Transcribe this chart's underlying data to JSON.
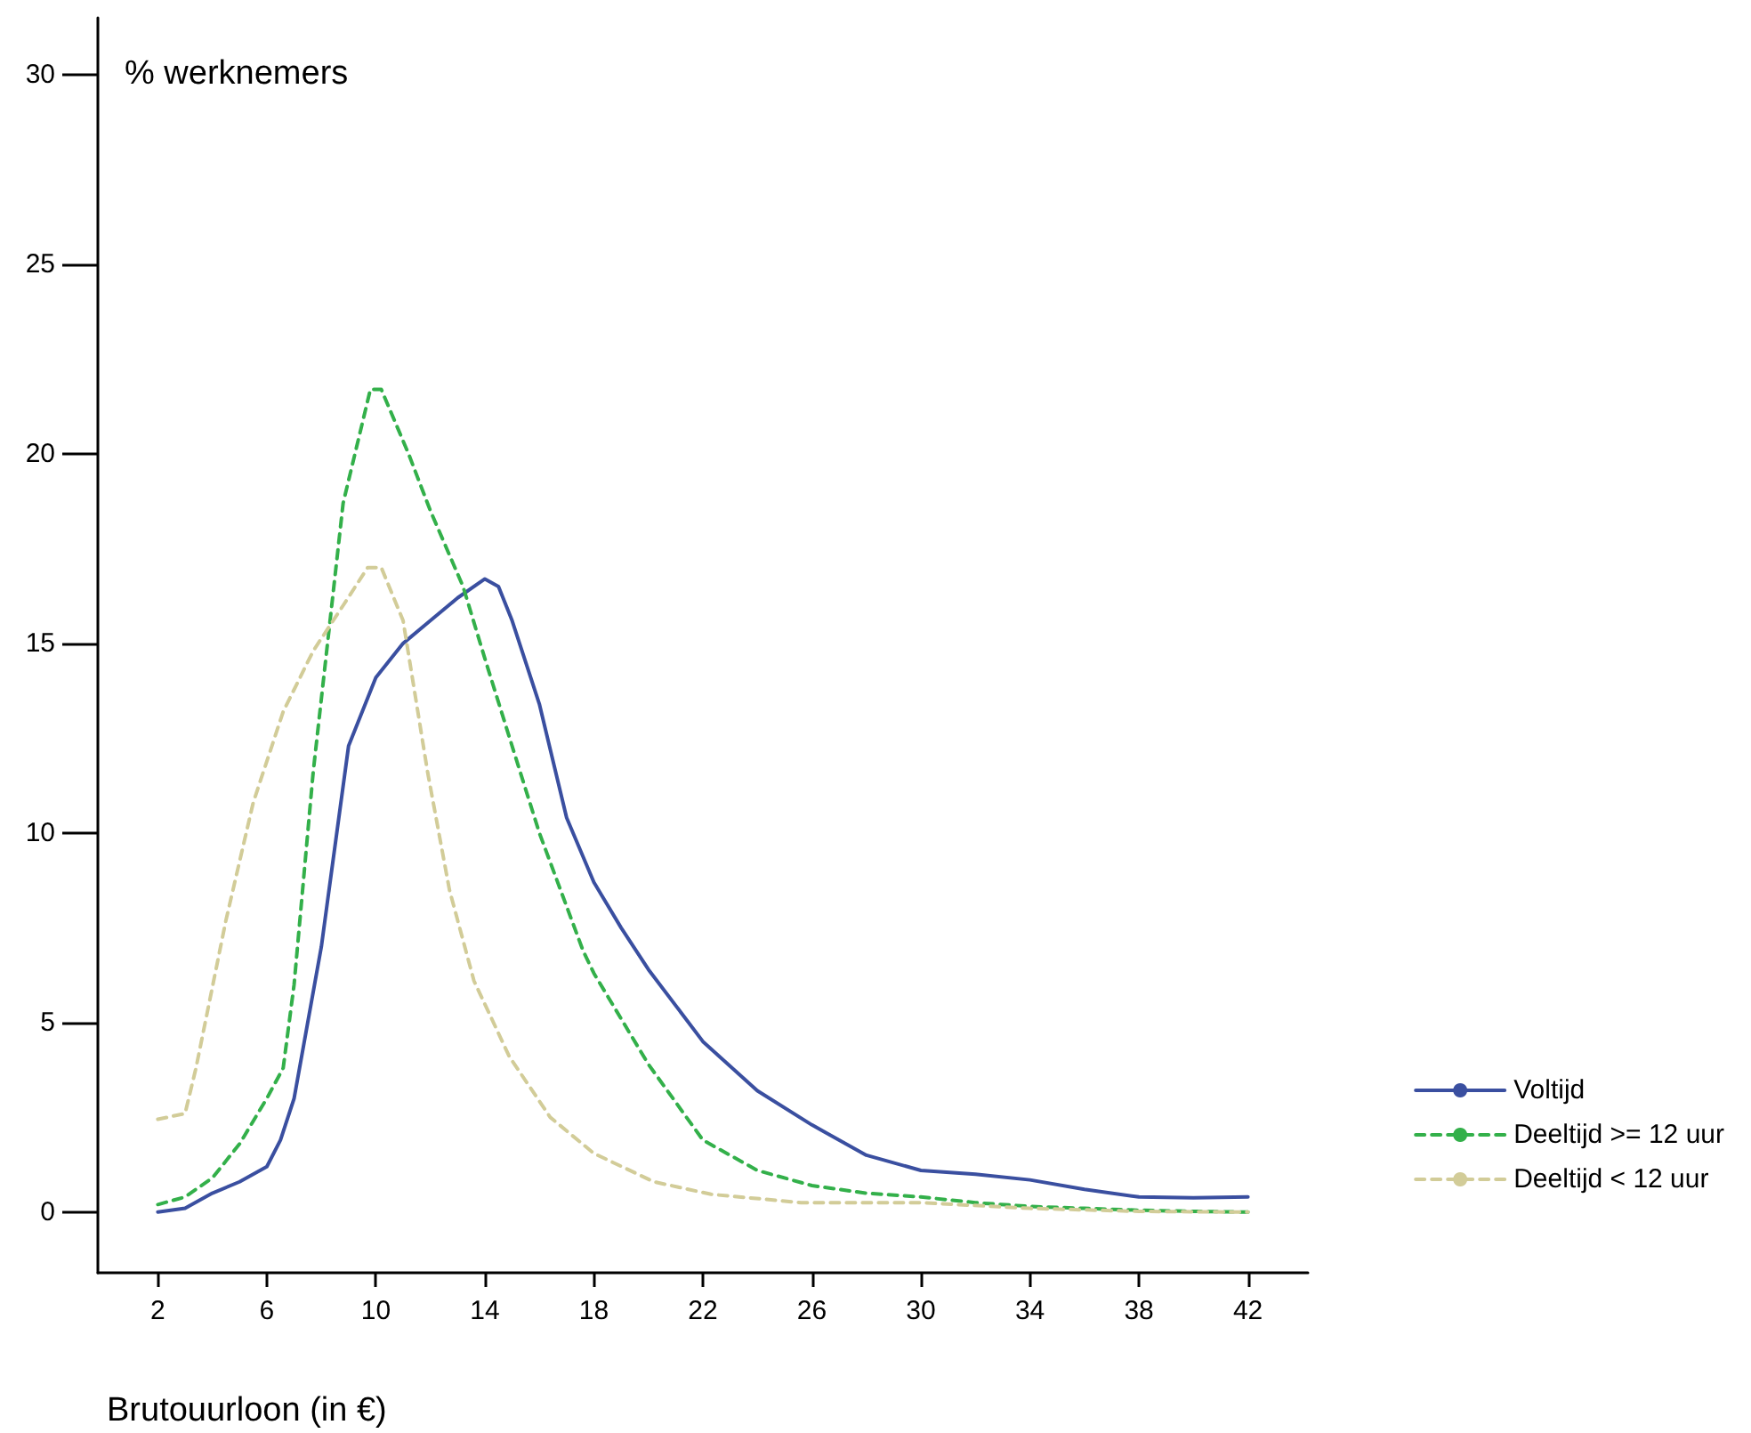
{
  "chart_data": {
    "type": "line",
    "ylabel": "% werknemers",
    "xlabel": "Brutouurloon (in €)",
    "xlim": [
      -0.2,
      44.2
    ],
    "ylim": [
      -1.6,
      31.5
    ],
    "xticks": [
      2,
      6,
      10,
      14,
      18,
      22,
      26,
      30,
      34,
      38,
      42
    ],
    "yticks": [
      0,
      5,
      10,
      15,
      20,
      25,
      30
    ],
    "legend": "right",
    "grid": false,
    "marker": "none",
    "series": [
      {
        "name": "Voltijd",
        "color": "#3a4fa0",
        "line_style": "solid",
        "x": [
          2,
          3,
          4,
          5,
          6,
          6.5,
          7,
          8,
          9,
          10,
          11,
          12,
          13,
          14,
          14.5,
          15,
          16,
          17,
          18,
          19,
          20,
          22,
          24,
          26,
          28,
          30,
          32,
          34,
          36,
          38,
          40,
          42
        ],
        "values": [
          0,
          0.1,
          0.5,
          0.8,
          1.2,
          1.9,
          3,
          7,
          12.3,
          14.1,
          15,
          15.6,
          16.2,
          16.7,
          16.5,
          15.6,
          13.4,
          10.4,
          8.7,
          7.5,
          6.4,
          4.5,
          3.2,
          2.3,
          1.5,
          1.1,
          1,
          0.85,
          0.6,
          0.4,
          0.38,
          0.4
        ]
      },
      {
        "name": "Deeltijd >= 12 uur",
        "color": "#33b04a",
        "line_style": "dashed",
        "x": [
          2,
          3,
          4,
          5,
          6,
          6.6,
          7,
          7.7,
          8.8,
          9.8,
          10.2,
          11.2,
          12,
          13.2,
          14,
          15.3,
          16,
          17.6,
          18,
          20,
          22,
          24,
          26,
          28,
          30,
          32,
          34,
          36,
          38,
          40,
          42
        ],
        "values": [
          0.2,
          0.4,
          0.9,
          1.8,
          3,
          3.8,
          6,
          11.6,
          18.7,
          21.7,
          21.7,
          20,
          18.5,
          16.5,
          14.6,
          11.6,
          10,
          6.9,
          6.3,
          3.9,
          1.9,
          1.1,
          0.7,
          0.5,
          0.4,
          0.25,
          0.15,
          0.1,
          0.05,
          0.02,
          0
        ]
      },
      {
        "name": "Deeltijd < 12 uur",
        "color": "#d2cc98",
        "line_style": "dashed",
        "x": [
          2,
          3,
          3.4,
          4.5,
          5.5,
          6.6,
          7.7,
          8.8,
          9.7,
          10.2,
          11,
          11.9,
          12.7,
          13.6,
          14.9,
          16.4,
          18,
          20.2,
          22.3,
          25.6,
          30,
          34,
          38,
          42
        ],
        "values": [
          2.45,
          2.6,
          3.8,
          7.7,
          10.8,
          13.2,
          14.8,
          16,
          17,
          17,
          15.6,
          11.6,
          8.5,
          6.1,
          4.1,
          2.5,
          1.55,
          0.8,
          0.47,
          0.25,
          0.25,
          0.1,
          0.02,
          0
        ]
      }
    ]
  }
}
